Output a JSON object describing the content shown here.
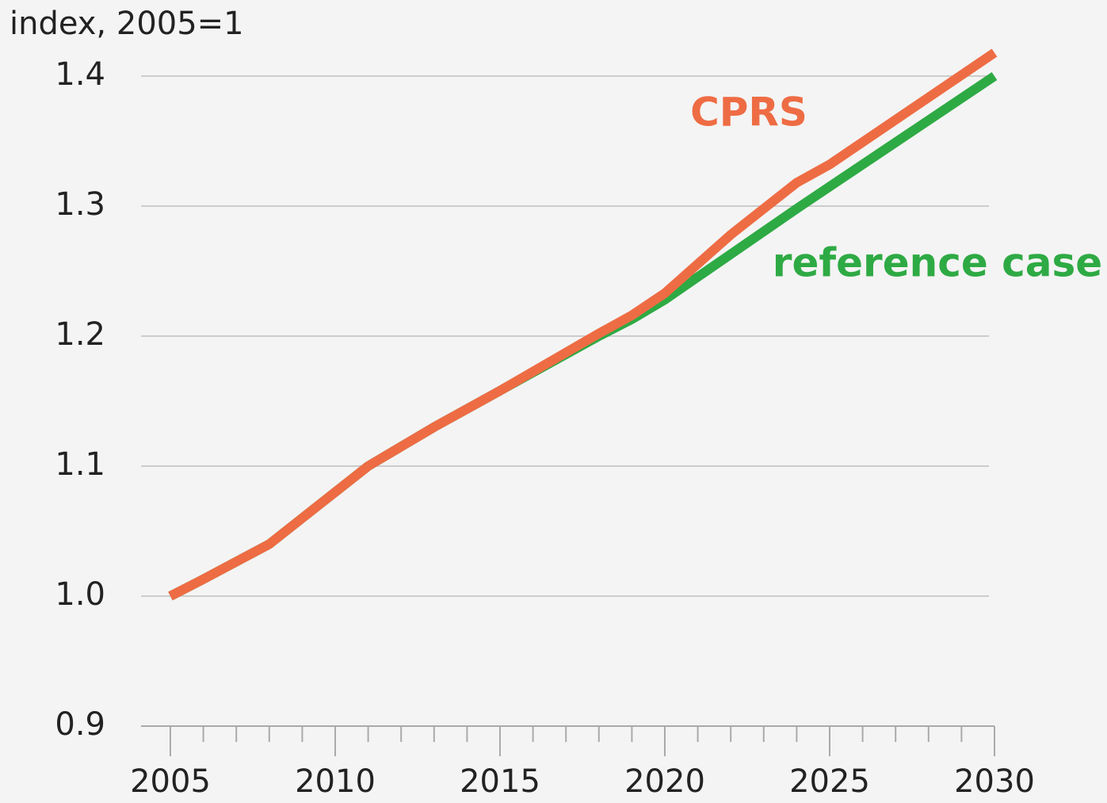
{
  "chart_data": {
    "type": "line",
    "y_axis_label": "index, 2005=1",
    "x": [
      2005,
      2006,
      2008,
      2011,
      2013,
      2015,
      2018,
      2019,
      2020,
      2022,
      2024,
      2025,
      2030
    ],
    "series": [
      {
        "name": "reference case",
        "color": "#2eaa44",
        "values": [
          1.0,
          1.013,
          1.04,
          1.1,
          1.13,
          1.158,
          1.2,
          1.213,
          1.228,
          1.263,
          1.298,
          1.315,
          1.4
        ]
      },
      {
        "name": "CPRS",
        "color": "#ee6c44",
        "values": [
          1.0,
          1.013,
          1.04,
          1.1,
          1.13,
          1.158,
          1.202,
          1.216,
          1.233,
          1.278,
          1.318,
          1.332,
          1.418
        ]
      }
    ],
    "xlim": [
      2005,
      2030
    ],
    "xticks": [
      2005,
      2010,
      2015,
      2020,
      2025,
      2030
    ],
    "xminorticks": [
      2006,
      2007,
      2008,
      2009,
      2011,
      2012,
      2013,
      2014,
      2016,
      2017,
      2018,
      2019,
      2021,
      2022,
      2023,
      2024,
      2026,
      2027,
      2028,
      2029
    ],
    "ylim": [
      0.9,
      1.45
    ],
    "yticks": [
      0.9,
      {
        "value": 1,
        "label": "1.0"
      },
      1.1,
      1.2,
      1.3,
      1.4
    ],
    "grid": true
  }
}
